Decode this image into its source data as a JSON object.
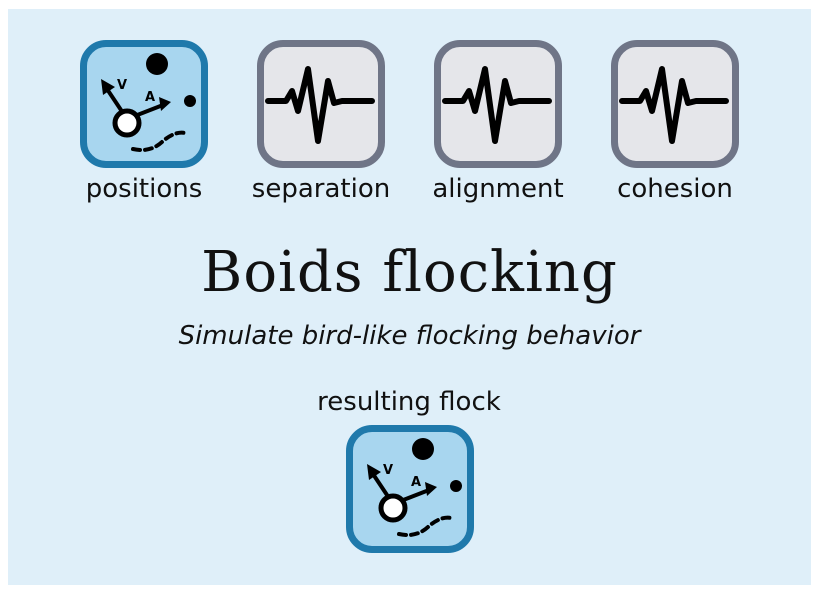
{
  "nodes": {
    "positions": {
      "label": "positions",
      "icon": "boid-motion-icon"
    },
    "separation": {
      "label": "separation",
      "icon": "waveform-icon"
    },
    "alignment": {
      "label": "alignment",
      "icon": "waveform-icon"
    },
    "cohesion": {
      "label": "cohesion",
      "icon": "waveform-icon"
    },
    "resulting_flock": {
      "label": "resulting flock",
      "icon": "boid-motion-icon"
    }
  },
  "title": "Boids flocking",
  "subtitle": "Simulate bird-like flocking behavior",
  "icon_glyphs": {
    "velocity": "V",
    "acceleration": "A"
  },
  "colors": {
    "background": "#dfeff9",
    "output_fill": "#a8d6ef",
    "output_border": "#1f79ab",
    "operator_fill": "#e5e6ea",
    "operator_border": "#6f7587"
  }
}
